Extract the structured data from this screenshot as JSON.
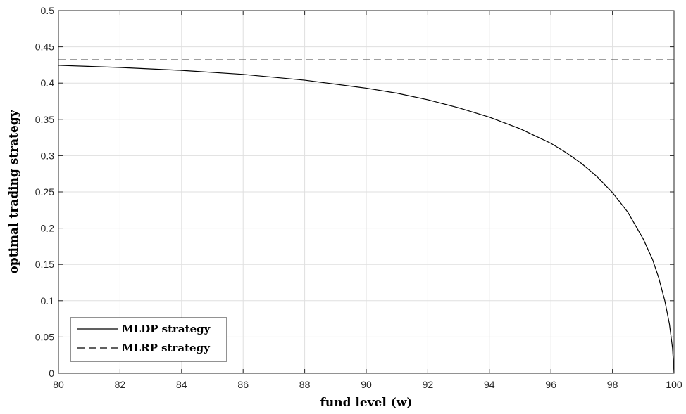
{
  "chart_data": {
    "type": "line",
    "title": "",
    "xlabel": "fund level (w)",
    "ylabel": "optimal trading strategy",
    "xlim": [
      80,
      100
    ],
    "ylim": [
      0,
      0.5
    ],
    "xticks": [
      80,
      82,
      84,
      86,
      88,
      90,
      92,
      94,
      96,
      98,
      100
    ],
    "xtick_labels": [
      "80",
      "82",
      "84",
      "86",
      "88",
      "90",
      "92",
      "94",
      "96",
      "98",
      "100"
    ],
    "yticks": [
      0,
      0.05,
      0.1,
      0.15,
      0.2,
      0.25,
      0.3,
      0.35,
      0.4,
      0.45,
      0.5
    ],
    "ytick_labels": [
      "0",
      "0.05",
      "0.1",
      "0.15",
      "0.2",
      "0.25",
      "0.3",
      "0.35",
      "0.4",
      "0.45",
      "0.5"
    ],
    "grid": true,
    "legend_position": "bottom-left",
    "series": [
      {
        "name": "MLDP strategy",
        "style": "solid",
        "color": "#000000",
        "x": [
          80,
          82,
          84,
          86,
          88,
          90,
          91,
          92,
          93,
          94,
          95,
          96,
          96.5,
          97,
          97.5,
          98,
          98.5,
          99,
          99.3,
          99.5,
          99.7,
          99.85,
          99.95,
          100
        ],
        "y": [
          0.4245,
          0.4215,
          0.4175,
          0.412,
          0.404,
          0.393,
          0.386,
          0.377,
          0.366,
          0.353,
          0.337,
          0.317,
          0.304,
          0.289,
          0.271,
          0.249,
          0.222,
          0.185,
          0.157,
          0.132,
          0.1,
          0.068,
          0.035,
          0
        ]
      },
      {
        "name": "MLRP strategy",
        "style": "dashed",
        "color": "#000000",
        "x": [
          80,
          100
        ],
        "y": [
          0.432,
          0.432
        ]
      }
    ]
  }
}
